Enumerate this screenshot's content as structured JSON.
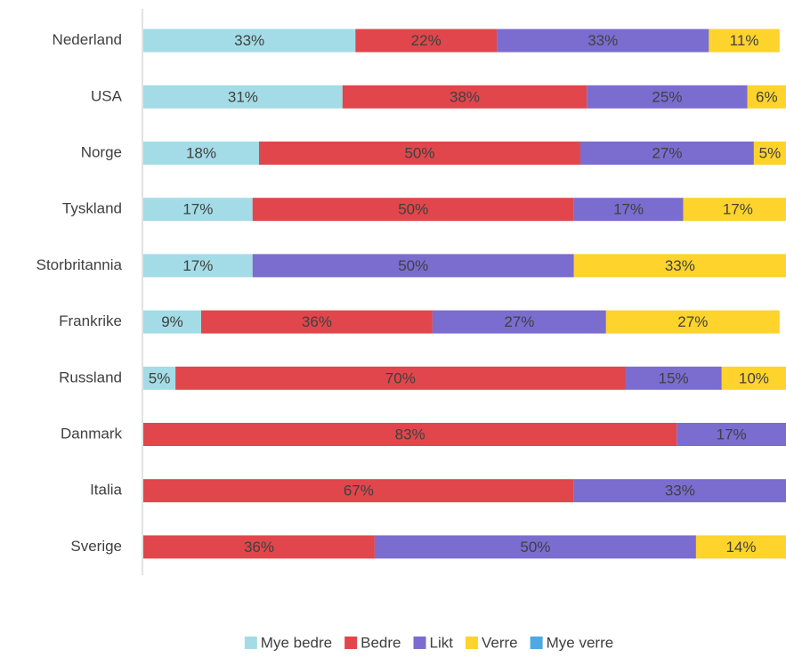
{
  "chart_data": {
    "type": "stacked-barh",
    "categories": [
      "Nederland",
      "USA",
      "Norge",
      "Tyskland",
      "Storbritannia",
      "Frankrike",
      "Russland",
      "Danmark",
      "Italia",
      "Sverige"
    ],
    "series": [
      {
        "name": "Mye bedre",
        "color": "#a3dce6",
        "values": [
          33,
          31,
          18,
          17,
          17,
          9,
          5,
          null,
          null,
          null
        ],
        "value_labels": [
          "33%",
          "31%",
          "18%",
          "17%",
          "17%",
          "9%",
          "5%",
          null,
          null,
          null
        ]
      },
      {
        "name": "Bedre",
        "color": "#e0464b",
        "values": [
          22,
          38,
          50,
          50,
          null,
          36,
          70,
          83,
          67,
          36
        ],
        "value_labels": [
          "22%",
          "38%",
          "50%",
          "50%",
          null,
          "36%",
          "70%",
          "83%",
          "67%",
          "36%"
        ]
      },
      {
        "name": "Likt",
        "color": "#7b6ccf",
        "values": [
          33,
          25,
          27,
          17,
          50,
          27,
          15,
          17,
          33,
          50
        ],
        "value_labels": [
          "33%",
          "25%",
          "27%",
          "17%",
          "50%",
          "27%",
          "15%",
          "17%",
          "33%",
          "50%"
        ]
      },
      {
        "name": "Verre",
        "color": "#fdd32c",
        "values": [
          11,
          6,
          5,
          17,
          33,
          27,
          10,
          null,
          null,
          14
        ],
        "value_labels": [
          "11%",
          "6%",
          "5%",
          "17%",
          "33%",
          "27%",
          "10%",
          null,
          null,
          "14%"
        ]
      },
      {
        "name": "Mye verre",
        "color": "#4ea8e2",
        "values": [
          null,
          null,
          null,
          null,
          null,
          null,
          null,
          null,
          null,
          null
        ]
      }
    ],
    "xlim": [
      0,
      100
    ]
  }
}
